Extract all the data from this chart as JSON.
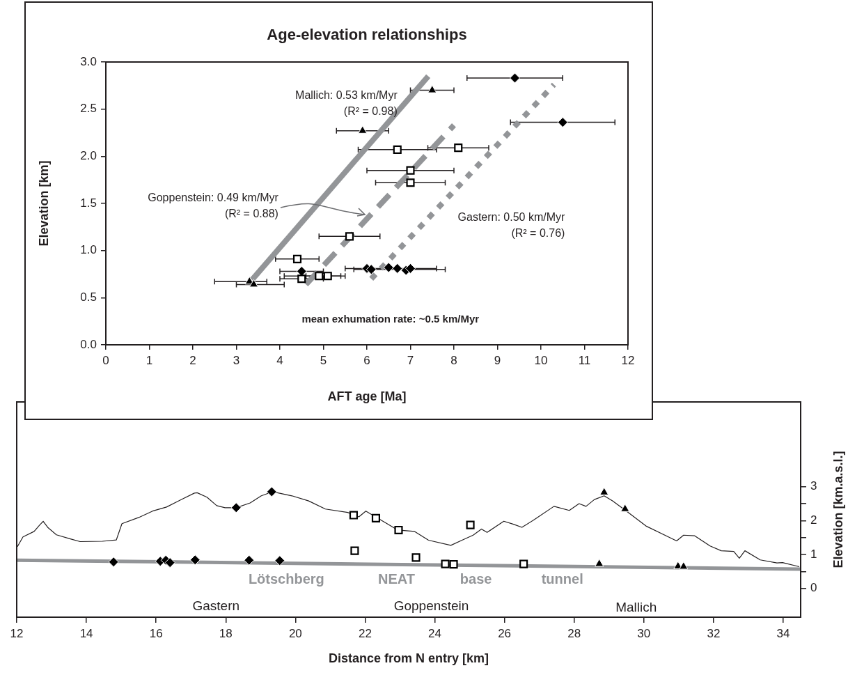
{
  "chart_data": [
    {
      "type": "scatter",
      "title": "Age-elevation relationships",
      "xlabel": "AFT age [Ma]",
      "ylabel": "Elevation [km]",
      "xlim": [
        0,
        12
      ],
      "xticks": [
        0,
        1,
        2,
        3,
        4,
        5,
        6,
        7,
        8,
        9,
        10,
        11,
        12
      ],
      "ylim": [
        0,
        3
      ],
      "yticks": [
        {
          "value": 0,
          "label": "0.0"
        },
        {
          "value": 0.5,
          "label": "0.5"
        },
        {
          "value": 1,
          "label": "1.0"
        },
        {
          "value": 1.5,
          "label": "1.5"
        },
        {
          "value": 2,
          "label": "2.0"
        },
        {
          "value": 2.5,
          "label": "2.5"
        },
        {
          "value": 3,
          "label": "3.0"
        }
      ],
      "grid": false,
      "legend": false,
      "annotations": [
        "Mallich: 0.53 km/Myr\n(R² = 0.98)",
        {
          "text": "Goppenstein: 0.49 km/Myr\n(R² = 0.88)",
          "x": 5.95,
          "y": 1.38
        },
        "Gastern: 0.50 km/Myr\n(R² = 0.76)",
        "mean exhumation rate: ~0.5 km/Myr"
      ],
      "series": [
        {
          "type": "line",
          "color": "#939598",
          "line_style": "solid",
          "marker": "none",
          "x": [
            3.36,
            7.41
          ],
          "values": [
            0.69,
            2.85
          ]
        },
        {
          "type": "line",
          "color": "#939598",
          "line_style": "dashed",
          "marker": "none",
          "x": [
            4.6,
            8.0
          ],
          "values": [
            0.64,
            2.33
          ]
        },
        {
          "type": "line",
          "color": "#939598",
          "line_style": "dotted",
          "marker": "none",
          "x": [
            6.1,
            10.3
          ],
          "values": [
            0.7,
            2.76
          ]
        },
        {
          "color": "#000000",
          "marker": "triangle",
          "x": [
            7.5,
            5.9,
            3.3,
            3.4
          ],
          "values": [
            2.7,
            2.27,
            0.67,
            0.64
          ],
          "xerrors": [
            [
              7.0,
              8.0
            ],
            [
              5.3,
              6.5
            ],
            [
              2.5,
              3.7
            ],
            [
              3.0,
              4.1
            ]
          ]
        },
        {
          "color": "#000000",
          "marker": "square",
          "x": [
            6.7,
            8.1,
            7.0,
            7.0,
            5.6,
            4.4,
            4.5,
            4.9,
            5.1
          ],
          "values": [
            2.07,
            2.09,
            1.85,
            1.72,
            1.15,
            0.91,
            0.7,
            0.73,
            0.73
          ],
          "xerrors": [
            [
              5.8,
              7.6
            ],
            [
              7.4,
              8.8
            ],
            [
              6.0,
              8.0
            ],
            [
              6.2,
              7.8
            ],
            [
              4.9,
              6.3
            ],
            [
              3.9,
              4.9
            ],
            [
              4.0,
              5.0
            ],
            [
              4.1,
              5.4
            ],
            [
              4.6,
              5.5
            ]
          ]
        },
        {
          "color": "#000000",
          "marker": "diamond",
          "x": [
            9.4,
            10.5,
            4.5,
            6.0,
            6.1,
            6.5,
            6.7,
            6.9,
            7.0
          ],
          "values": [
            2.83,
            2.36,
            0.78,
            0.81,
            0.8,
            0.82,
            0.81,
            0.79,
            0.81
          ],
          "xerrors": [
            [
              8.3,
              10.5
            ],
            [
              9.3,
              11.7
            ],
            [
              4.0,
              5.0
            ],
            [
              5.5,
              7.6
            ],
            [
              5.7,
              7.8
            ],
            null,
            null,
            null,
            null
          ]
        }
      ]
    },
    {
      "type": "line",
      "xlabel": "Distance from N entry [km]",
      "ylabel": "Elevation [km.a.s.l.]",
      "xlim": [
        12,
        34.5
      ],
      "xticks": [
        12,
        14,
        16,
        18,
        20,
        22,
        24,
        26,
        28,
        30,
        32,
        34
      ],
      "ylim": [
        -0.85,
        5.5
      ],
      "yticks": [
        0,
        {
          "value": 0.5,
          "label": null
        },
        1,
        {
          "value": 1.5,
          "label": null
        },
        2,
        {
          "value": 2.5,
          "label": null
        },
        3
      ],
      "grid": false,
      "legend": false,
      "annotations": [
        "Lötschberg",
        "NEAT",
        "base",
        "tunnel",
        "Gastern",
        "Goppenstein",
        "Mallich"
      ],
      "series": [
        {
          "color": "#231f20",
          "marker": "none",
          "x": [
            12.02,
            12.18,
            12.5,
            12.66,
            12.76,
            12.9,
            13.14,
            13.54,
            13.82,
            14.46,
            14.86,
            15.02,
            15.5,
            15.9,
            16.3,
            16.78,
            17.1,
            17.18,
            17.46,
            17.74,
            17.98,
            18.3,
            18.7,
            19.02,
            19.34,
            19.9,
            20.38,
            20.86,
            21.5,
            21.82,
            22.02,
            22.3,
            22.94,
            23.42,
            23.82,
            24.46,
            24.78,
            25.1,
            25.34,
            25.5,
            25.98,
            26.26,
            26.5,
            26.86,
            27.42,
            27.86,
            28.14,
            28.34,
            28.58,
            28.86,
            29.1,
            29.5,
            30.06,
            30.94,
            31.14,
            31.46,
            31.9,
            32.22,
            32.58,
            32.74,
            32.9,
            33.34,
            33.82,
            33.98,
            34.46
          ],
          "values": [
            1.23,
            1.52,
            1.68,
            1.87,
            1.98,
            1.79,
            1.58,
            1.46,
            1.38,
            1.39,
            1.43,
            1.91,
            2.09,
            2.28,
            2.4,
            2.65,
            2.81,
            2.82,
            2.69,
            2.44,
            2.38,
            2.38,
            2.52,
            2.73,
            2.85,
            2.73,
            2.58,
            2.34,
            2.24,
            2.11,
            2.28,
            2.11,
            1.72,
            1.68,
            1.42,
            1.27,
            1.42,
            1.57,
            1.75,
            1.65,
            1.98,
            1.89,
            1.8,
            2.03,
            2.42,
            2.3,
            2.5,
            2.42,
            2.62,
            2.73,
            2.58,
            2.28,
            1.84,
            1.4,
            1.57,
            1.55,
            1.25,
            1.11,
            1.09,
            0.89,
            1.11,
            0.84,
            0.75,
            0.76,
            0.64
          ]
        },
        {
          "color": "#939598",
          "marker": "none",
          "x": [
            12,
            34.5
          ],
          "values": [
            0.83,
            0.57
          ]
        },
        {
          "type": "scatter",
          "color": "#000000",
          "marker": "diamond",
          "x": [
            14.78,
            16.12,
            16.28,
            16.4,
            17.12,
            18.67,
            19.55,
            18.3,
            19.32
          ],
          "values": [
            0.78,
            0.8,
            0.83,
            0.76,
            0.84,
            0.83,
            0.82,
            2.38,
            2.85
          ]
        },
        {
          "type": "scatter",
          "color": "#000000",
          "marker": "square",
          "x": [
            21.67,
            22.31,
            22.96,
            21.7,
            23.46,
            24.3,
            24.54,
            25.02,
            26.55
          ],
          "values": [
            2.16,
            2.07,
            1.72,
            1.11,
            0.91,
            0.72,
            0.71,
            1.87,
            0.72
          ]
        },
        {
          "type": "scatter",
          "color": "#000000",
          "marker": "triangle",
          "x": [
            28.86,
            29.46,
            28.72,
            30.98,
            31.14
          ],
          "values": [
            2.83,
            2.34,
            0.72,
            0.65,
            0.64
          ]
        }
      ]
    }
  ]
}
